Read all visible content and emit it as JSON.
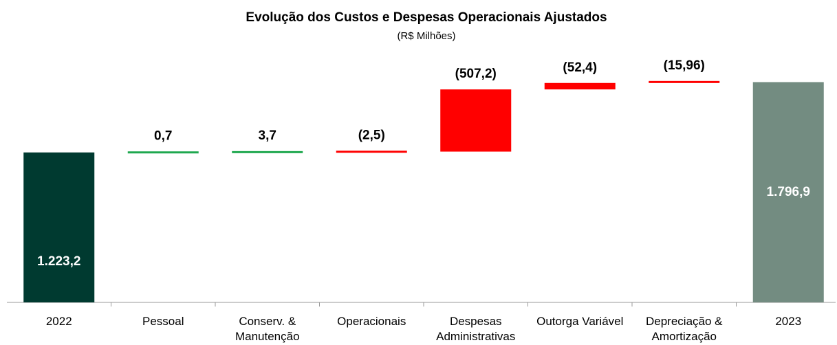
{
  "chart_data": {
    "type": "waterfall",
    "title": "Evolução dos Custos e Despesas Operacionais Ajustados",
    "subtitle": "(R$ Milhões)",
    "categories": [
      "2022",
      "Pessoal",
      "Conserv. & Manutenção",
      "Operacionais",
      "Despesas Administrativas",
      "Outorga Variável",
      "Depreciação & Amortização",
      "2023"
    ],
    "values": [
      1223.2,
      0.7,
      3.7,
      2.5,
      507.2,
      52.4,
      15.96,
      1796.9
    ],
    "value_labels": [
      "1.223,2",
      "0,7",
      "3,7",
      "(2,5)",
      "(507,2)",
      "(52,4)",
      "(15,96)",
      "1.796,9"
    ],
    "totals": [
      true,
      false,
      false,
      false,
      false,
      false,
      false,
      true
    ],
    "colors": [
      "#003a30",
      "#1fa84f",
      "#1fa84f",
      "#ff0000",
      "#ff0000",
      "#ff0000",
      "#ff0000",
      "#738c81"
    ],
    "ylim": [
      0,
      1850
    ]
  }
}
